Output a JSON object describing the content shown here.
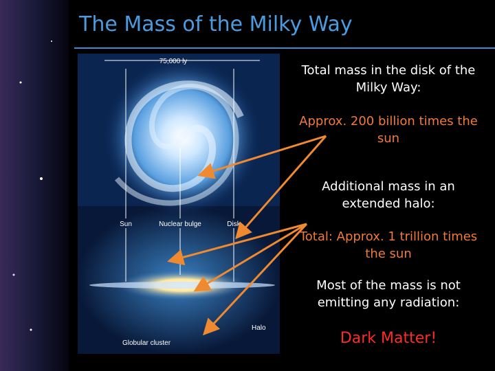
{
  "title": "The Mass of the Milky Way",
  "figure": {
    "labels": {
      "width": "75,000 ly",
      "sun": "Sun",
      "bulge": "Nuclear bulge",
      "disk": "Disk",
      "halo": "Halo",
      "cluster": "Globular cluster"
    }
  },
  "text_blocks": [
    "Total mass in the disk of the Milky Way:",
    "Approx. 200 billion times the sun",
    "Additional mass in an extended halo:",
    "Total: Approx. 1 trillion times the sun",
    "Most of the mass is not emitting any radiation:",
    "Dark Matter!"
  ]
}
